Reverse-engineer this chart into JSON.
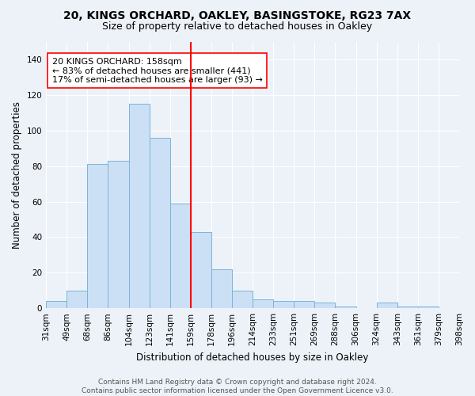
{
  "title_line1": "20, KINGS ORCHARD, OAKLEY, BASINGSTOKE, RG23 7AX",
  "title_line2": "Size of property relative to detached houses in Oakley",
  "xlabel": "Distribution of detached houses by size in Oakley",
  "ylabel": "Number of detached properties",
  "bar_color": "#cce0f5",
  "bar_edge_color": "#7ab4d8",
  "background_color": "#edf2f9",
  "grid_color": "white",
  "annotation_line_bin": 7,
  "annotation_text_line1": "20 KINGS ORCHARD: 158sqm",
  "annotation_text_line2": "← 83% of detached houses are smaller (441)",
  "annotation_text_line3": "17% of semi-detached houses are larger (93) →",
  "footer_text": "Contains HM Land Registry data © Crown copyright and database right 2024.\nContains public sector information licensed under the Open Government Licence v3.0.",
  "bin_labels": [
    "31sqm",
    "49sqm",
    "68sqm",
    "86sqm",
    "104sqm",
    "123sqm",
    "141sqm",
    "159sqm",
    "178sqm",
    "196sqm",
    "214sqm",
    "233sqm",
    "251sqm",
    "269sqm",
    "288sqm",
    "306sqm",
    "324sqm",
    "343sqm",
    "361sqm",
    "379sqm",
    "398sqm"
  ],
  "bar_heights": [
    4,
    10,
    81,
    83,
    115,
    96,
    59,
    43,
    22,
    10,
    5,
    4,
    4,
    3,
    1,
    0,
    3,
    1,
    1,
    0
  ],
  "ylim": [
    0,
    150
  ],
  "yticks": [
    0,
    20,
    40,
    60,
    80,
    100,
    120,
    140
  ],
  "title_fontsize": 10,
  "subtitle_fontsize": 9,
  "axis_label_fontsize": 8.5,
  "tick_fontsize": 7.5,
  "annotation_fontsize": 8,
  "footer_fontsize": 6.5
}
